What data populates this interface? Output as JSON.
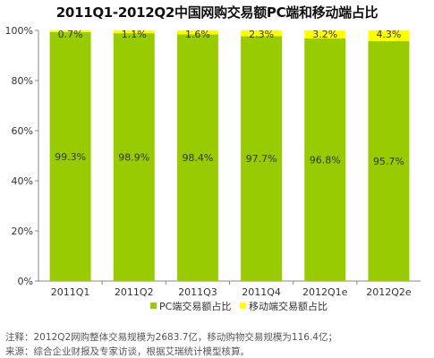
{
  "chart_data": {
    "type": "bar",
    "stacked": true,
    "title": "2011Q1-2012Q2中国网购交易额PC端和移动端占比",
    "categories": [
      "2011Q1",
      "2011Q2",
      "2011Q3",
      "2011Q4",
      "2012Q1e",
      "2012Q2e"
    ],
    "series": [
      {
        "name": "PC端交易额占比",
        "color": "#99cc00",
        "values": [
          99.3,
          98.9,
          98.4,
          97.7,
          96.8,
          95.7
        ],
        "labels": [
          "99.3%",
          "98.9%",
          "98.4%",
          "97.7%",
          "96.8%",
          "95.7%"
        ]
      },
      {
        "name": "移动端交易额占比",
        "color": "#ffff00",
        "values": [
          0.7,
          1.1,
          1.6,
          2.3,
          3.2,
          4.3
        ],
        "labels": [
          "0.7%",
          "1.1%",
          "1.6%",
          "2.3%",
          "3.2%",
          "4.3%"
        ]
      }
    ],
    "ylim": [
      0,
      100
    ],
    "yticks": [
      "0%",
      "20%",
      "40%",
      "60%",
      "80%",
      "100%"
    ],
    "legend_position": "bottom",
    "grid": false
  },
  "footer": {
    "note_label": "注释：",
    "note_text": "2012Q2网购整体交易规模为2683.7亿，移动购物交易规模为116.4亿；",
    "source_label": "来源：",
    "source_text": "综合企业财报及专家访谈，根据艾瑞统计模型核算。"
  }
}
